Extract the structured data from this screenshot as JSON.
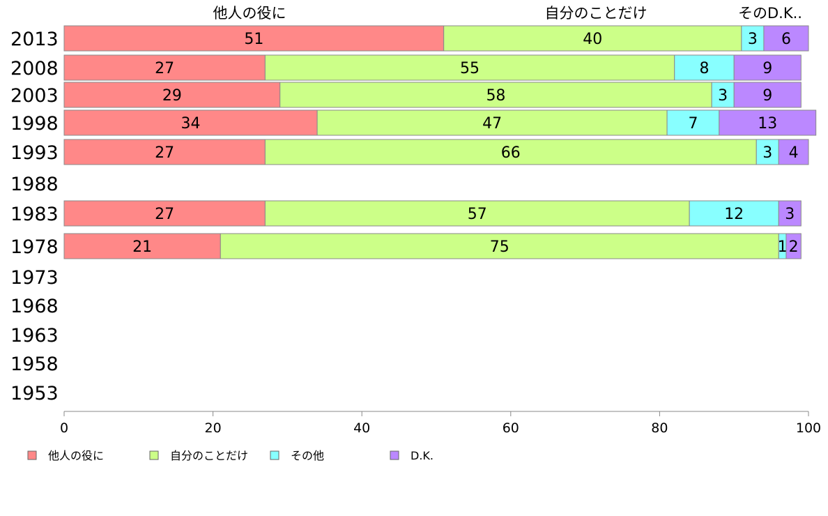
{
  "chart_data": {
    "type": "bar",
    "orientation": "horizontal",
    "stacked": true,
    "categories": [
      "2013",
      "2008",
      "2003",
      "1998",
      "1993",
      "1988",
      "1983",
      "1978",
      "1973",
      "1968",
      "1963",
      "1958",
      "1953"
    ],
    "series": [
      {
        "name": "他人の役に",
        "color": "#ff8888",
        "values": [
          51,
          27,
          29,
          34,
          27,
          null,
          27,
          21,
          null,
          null,
          null,
          null,
          null
        ]
      },
      {
        "name": "自分のことだけ",
        "color": "#ccff88",
        "values": [
          40,
          55,
          58,
          47,
          66,
          null,
          57,
          75,
          null,
          null,
          null,
          null,
          null
        ]
      },
      {
        "name": "その他",
        "color": "#88ffff",
        "values": [
          3,
          8,
          3,
          7,
          3,
          null,
          12,
          1,
          null,
          null,
          null,
          null,
          null
        ]
      },
      {
        "name": "D.K.",
        "color": "#bb88ff",
        "values": [
          6,
          9,
          9,
          13,
          4,
          null,
          3,
          2,
          null,
          null,
          null,
          null,
          null
        ]
      }
    ],
    "top_labels": [
      "他人の役に",
      "自分のことだけ",
      "そのD.K.."
    ],
    "xlim": [
      0,
      100
    ],
    "xticks": [
      0,
      20,
      40,
      60,
      80,
      100
    ],
    "xlabel": "",
    "ylabel": "",
    "title": "",
    "grid": false,
    "legend": "bottom"
  }
}
